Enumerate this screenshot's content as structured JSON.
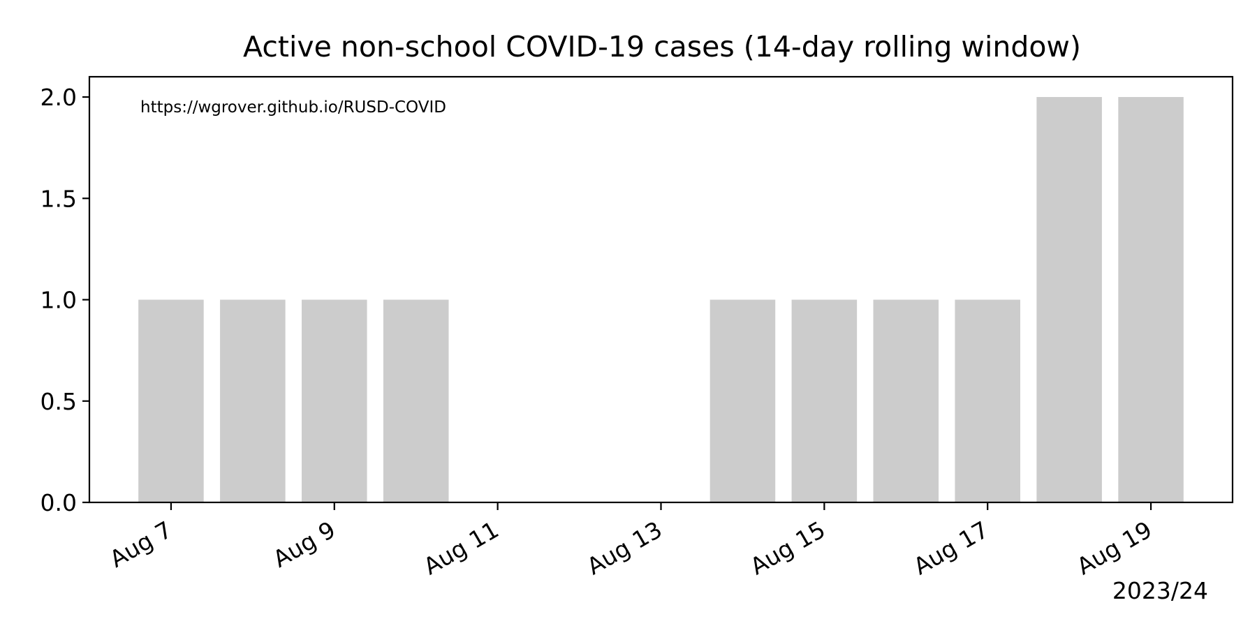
{
  "chart_data": {
    "type": "bar",
    "title": "Active non-school COVID-19 cases (14-day rolling window)",
    "annotation": "https://wgrover.github.io/RUSD-COVID",
    "xlabel": "",
    "ylabel": "",
    "year_label": "2023/24",
    "categories": [
      "2023-08-07",
      "2023-08-08",
      "2023-08-09",
      "2023-08-10",
      "2023-08-11",
      "2023-08-12",
      "2023-08-13",
      "2023-08-14",
      "2023-08-15",
      "2023-08-16",
      "2023-08-17",
      "2023-08-18",
      "2023-08-19"
    ],
    "values": [
      1,
      1,
      1,
      1,
      0,
      0,
      0,
      1,
      1,
      1,
      1,
      2,
      2
    ],
    "x_ticks": [
      "Aug  7",
      "Aug  9",
      "Aug 11",
      "Aug 13",
      "Aug 15",
      "Aug 17",
      "Aug 19"
    ],
    "x_tick_dates": [
      "2023-08-07",
      "2023-08-09",
      "2023-08-11",
      "2023-08-13",
      "2023-08-15",
      "2023-08-17",
      "2023-08-19"
    ],
    "y_ticks": [
      "0.0",
      "0.5",
      "1.0",
      "1.5",
      "2.0"
    ],
    "y_tick_values": [
      0,
      0.5,
      1,
      1.5,
      2
    ],
    "xlim": [
      "2023-08-06",
      "2023-08-20"
    ],
    "ylim": [
      0,
      2.1
    ],
    "grid": false,
    "bar_color": "#cccccc"
  }
}
